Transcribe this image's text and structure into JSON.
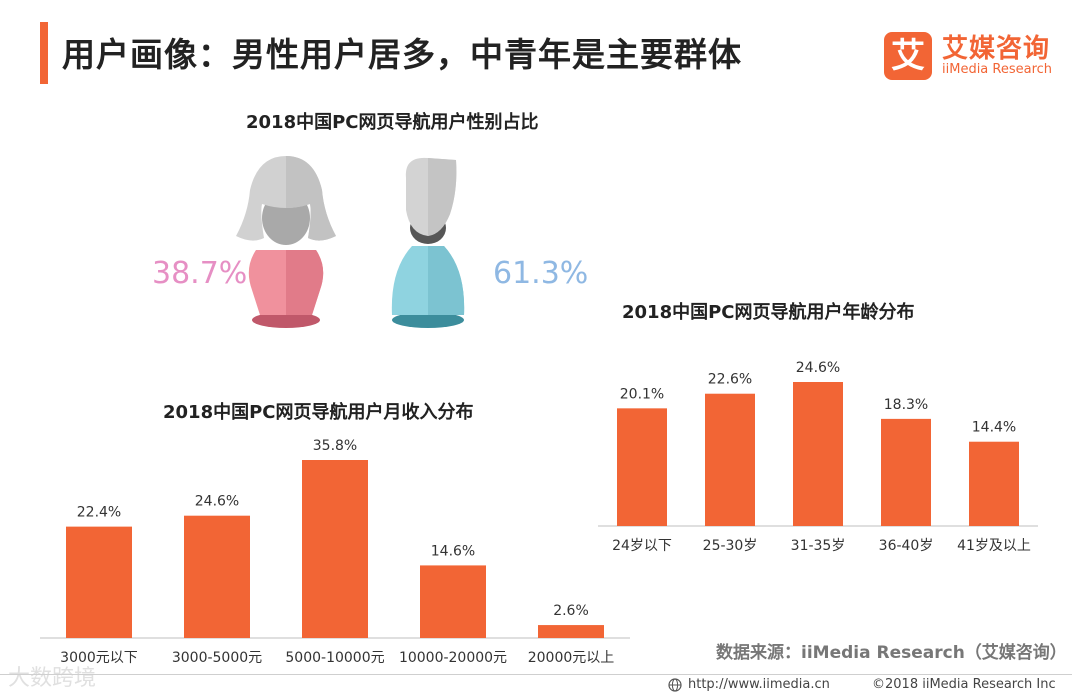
{
  "header": {
    "title": "用户画像：男性用户居多，中青年是主要群体",
    "logo_cn": "艾媒咨询",
    "logo_en": "iiMedia Research",
    "logo_glyph": "艾",
    "accent_color": "#f26535"
  },
  "gender": {
    "title": "2018中国PC网页导航用户性别占比",
    "female_pct": "38.7%",
    "male_pct": "61.3%",
    "female_color": "#e68fc4",
    "male_color": "#8fb8e3"
  },
  "chart_data": [
    {
      "type": "bar",
      "title": "2018中国PC网页导航用户月收入分布",
      "categories": [
        "3000元以下",
        "3000-5000元",
        "5000-10000元",
        "10000-20000元",
        "20000元以上"
      ],
      "values": [
        22.4,
        24.6,
        35.8,
        14.6,
        2.6
      ],
      "labels": [
        "22.4%",
        "24.6%",
        "35.8%",
        "14.6%",
        "2.6%"
      ],
      "ylim": [
        0,
        35.8
      ],
      "grid": false,
      "color": "#f26535"
    },
    {
      "type": "bar",
      "title": "2018中国PC网页导航用户年龄分布",
      "categories": [
        "24岁以下",
        "25-30岁",
        "31-35岁",
        "36-40岁",
        "41岁及以上"
      ],
      "values": [
        20.1,
        22.6,
        24.6,
        18.3,
        14.4
      ],
      "labels": [
        "20.1%",
        "22.6%",
        "24.6%",
        "18.3%",
        "14.4%"
      ],
      "ylim": [
        0,
        24.6
      ],
      "grid": false,
      "color": "#f26535"
    }
  ],
  "source": "数据来源：iiMedia Research（艾媒咨询）",
  "footer": {
    "url": "http://www.iimedia.cn",
    "copyright": "©2018  iiMedia Research  Inc"
  },
  "watermark": "大数跨境"
}
